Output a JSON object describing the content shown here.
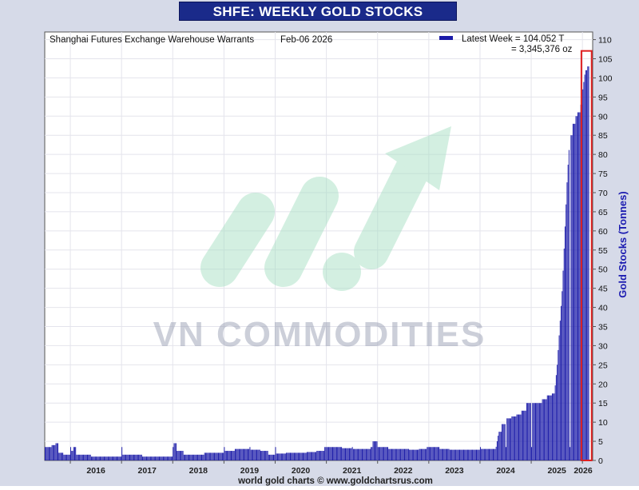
{
  "title": "SHFE: WEEKLY GOLD STOCKS",
  "watermark": {
    "text": "VN COMMODITIES",
    "color": "#9aa0b4",
    "accent": "#a8e0c4"
  },
  "footer": "world gold charts © www.goldchartsrus.com",
  "colors": {
    "bar": "#1a1aa8",
    "highlight": "#e02020",
    "title_bg": "#1a2a8a",
    "axis_label": "#1a1ab0"
  },
  "chart_data": {
    "type": "bar",
    "title": "SHFE: WEEKLY GOLD STOCKS",
    "subtitle": "Shanghai Futures Exchange Warehouse Warrants",
    "date_label": "Feb-06  2026",
    "ylabel": "Gold Stocks (Tonnes)",
    "xlabel": "",
    "legend": {
      "position": "top-right",
      "line1": "Latest Week = 104.052 T",
      "line2": "= 3,345,376 oz"
    },
    "latest_value": 104.052,
    "ylim": [
      0,
      112
    ],
    "yticks": [
      0,
      5,
      10,
      15,
      20,
      25,
      30,
      35,
      40,
      45,
      50,
      55,
      60,
      65,
      70,
      75,
      80,
      85,
      90,
      95,
      100,
      105,
      110
    ],
    "xlim": [
      2015.5,
      2026.2
    ],
    "xticks": [
      "2016",
      "2017",
      "2018",
      "2019",
      "2020",
      "2021",
      "2022",
      "2023",
      "2024",
      "2025",
      "2026"
    ],
    "grid": true,
    "series": [
      {
        "values": [
          [
            2015.5,
            3.5
          ],
          [
            2015.62,
            4.0
          ],
          [
            2015.7,
            4.5
          ],
          [
            2015.76,
            2.0
          ],
          [
            2015.85,
            1.5
          ],
          [
            2016.0,
            2.5
          ],
          [
            2016.05,
            3.5
          ],
          [
            2016.1,
            1.5
          ],
          [
            2016.4,
            1.0
          ],
          [
            2016.8,
            1.0
          ],
          [
            2017.0,
            1.5
          ],
          [
            2017.4,
            1.0
          ],
          [
            2017.8,
            1.0
          ],
          [
            2017.95,
            1.0
          ],
          [
            2018.0,
            4.5
          ],
          [
            2018.06,
            2.5
          ],
          [
            2018.2,
            1.5
          ],
          [
            2018.4,
            1.5
          ],
          [
            2018.6,
            2.0
          ],
          [
            2018.9,
            2.0
          ],
          [
            2019.0,
            2.5
          ],
          [
            2019.2,
            3.0
          ],
          [
            2019.3,
            3.0
          ],
          [
            2019.5,
            2.8
          ],
          [
            2019.7,
            2.5
          ],
          [
            2019.85,
            1.5
          ],
          [
            2020.0,
            1.8
          ],
          [
            2020.2,
            2.0
          ],
          [
            2020.4,
            2.0
          ],
          [
            2020.6,
            2.2
          ],
          [
            2020.8,
            2.5
          ],
          [
            2020.95,
            3.5
          ],
          [
            2021.1,
            3.5
          ],
          [
            2021.3,
            3.2
          ],
          [
            2021.5,
            3.0
          ],
          [
            2021.7,
            3.0
          ],
          [
            2021.85,
            3.5
          ],
          [
            2021.9,
            5.0
          ],
          [
            2022.0,
            3.5
          ],
          [
            2022.2,
            3.0
          ],
          [
            2022.4,
            3.0
          ],
          [
            2022.6,
            2.8
          ],
          [
            2022.8,
            3.0
          ],
          [
            2022.95,
            3.5
          ],
          [
            2023.2,
            3.0
          ],
          [
            2023.4,
            2.8
          ],
          [
            2023.6,
            2.8
          ],
          [
            2023.8,
            2.8
          ],
          [
            2024.0,
            3.0
          ],
          [
            2024.2,
            3.0
          ],
          [
            2024.3,
            3.0
          ],
          [
            2024.36,
            7.5
          ],
          [
            2024.42,
            9.5
          ],
          [
            2024.5,
            11.0
          ],
          [
            2024.6,
            11.5
          ],
          [
            2024.7,
            12.0
          ],
          [
            2024.8,
            13.0
          ],
          [
            2024.9,
            15.0
          ],
          [
            2025.0,
            15.0
          ],
          [
            2025.1,
            15.0
          ],
          [
            2025.2,
            16.0
          ],
          [
            2025.3,
            17.0
          ],
          [
            2025.4,
            17.5
          ],
          [
            2025.45,
            18.0
          ],
          [
            2025.5,
            25.0
          ],
          [
            2025.55,
            35.0
          ],
          [
            2025.6,
            45.0
          ],
          [
            2025.65,
            60.0
          ],
          [
            2025.7,
            75.0
          ],
          [
            2025.75,
            85.0
          ],
          [
            2025.8,
            88.0
          ],
          [
            2025.85,
            90.0
          ],
          [
            2025.9,
            91.0
          ],
          [
            2025.95,
            93.0
          ],
          [
            2026.0,
            97.0
          ],
          [
            2026.05,
            102.0
          ],
          [
            2026.09,
            103.0
          ],
          [
            2026.12,
            104.052
          ]
        ]
      }
    ]
  }
}
